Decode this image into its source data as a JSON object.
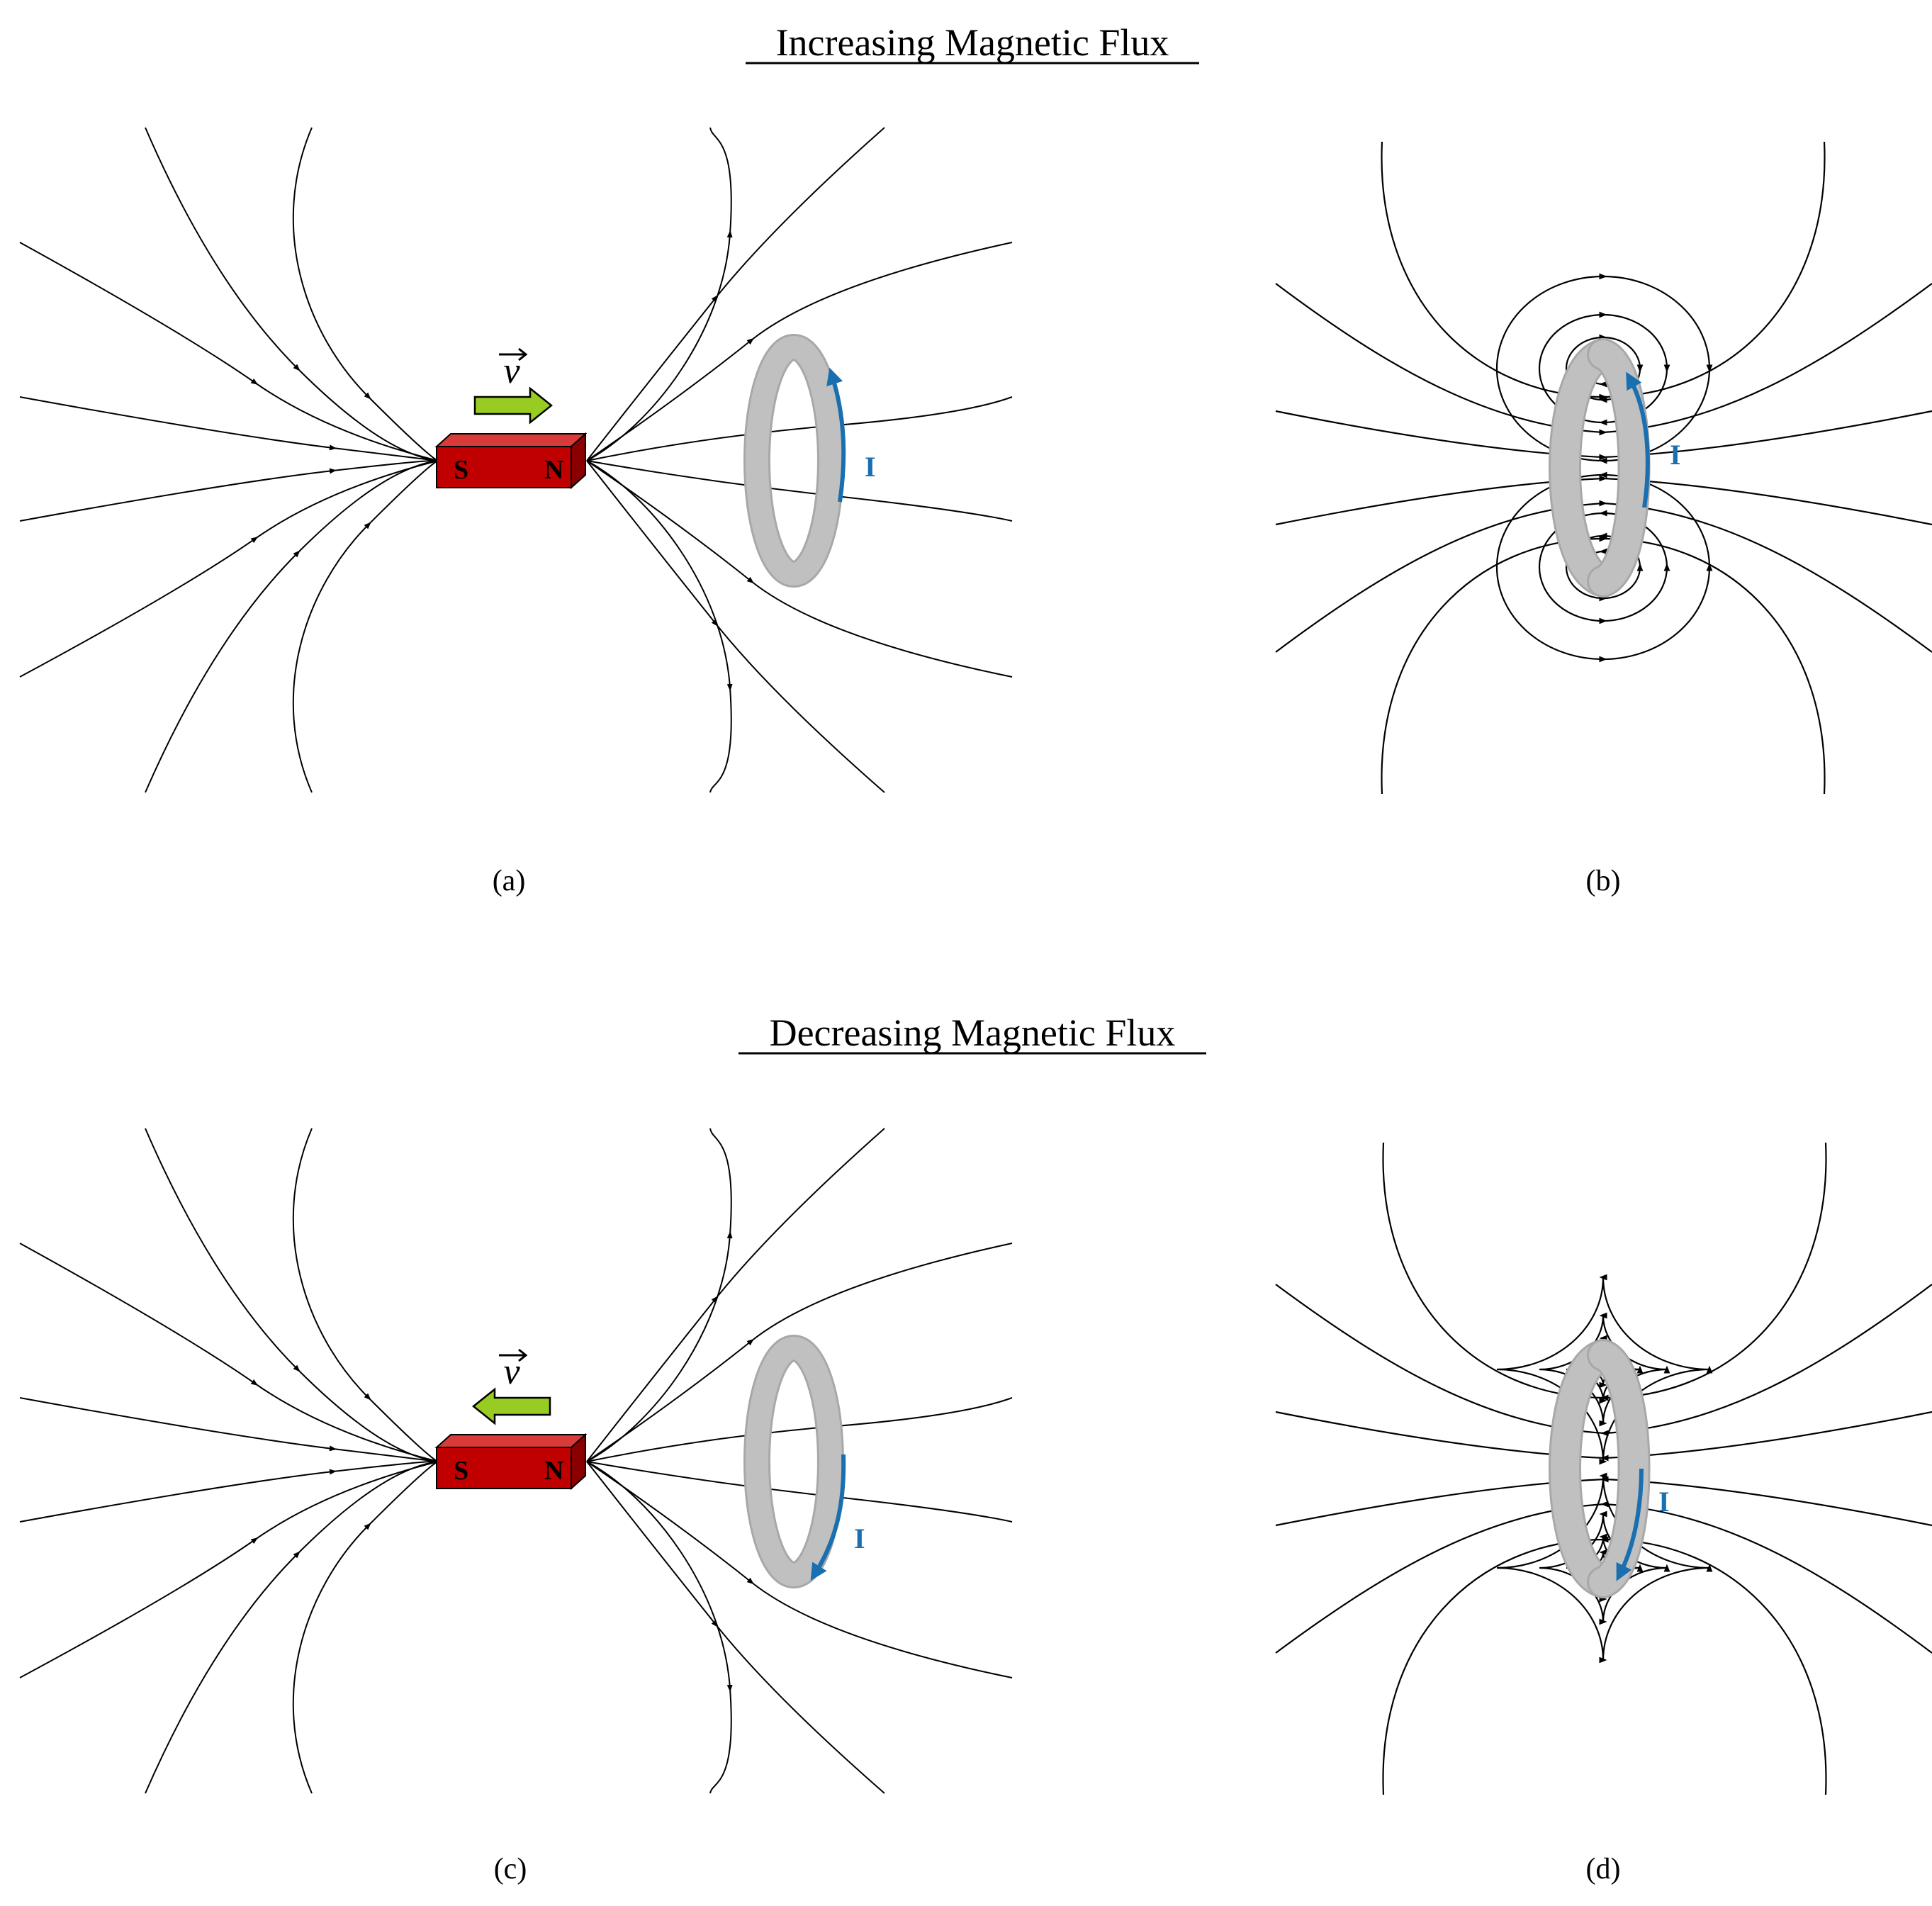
{
  "headings": {
    "increasing": "Increasing Magnetic Flux",
    "decreasing": "Decreasing Magnetic Flux"
  },
  "panels": [
    {
      "id": "a",
      "label": "(a)",
      "type": "magnet",
      "velocity": "right",
      "current": "up"
    },
    {
      "id": "b",
      "label": "(b)",
      "type": "loop",
      "field": "leftward",
      "current": "up"
    },
    {
      "id": "c",
      "label": "(c)",
      "type": "magnet",
      "velocity": "left",
      "current": "down"
    },
    {
      "id": "d",
      "label": "(d)",
      "type": "loop",
      "field": "rightward",
      "current": "down"
    }
  ],
  "magnet": {
    "south": "S",
    "north": "N",
    "color": "#c00000"
  },
  "velocity_symbol": "v",
  "current_symbol": "I",
  "colors": {
    "arrow": "#99cc22",
    "loop": "#c0c0c0",
    "current": "#1a6fb0",
    "lines": "#000000"
  }
}
